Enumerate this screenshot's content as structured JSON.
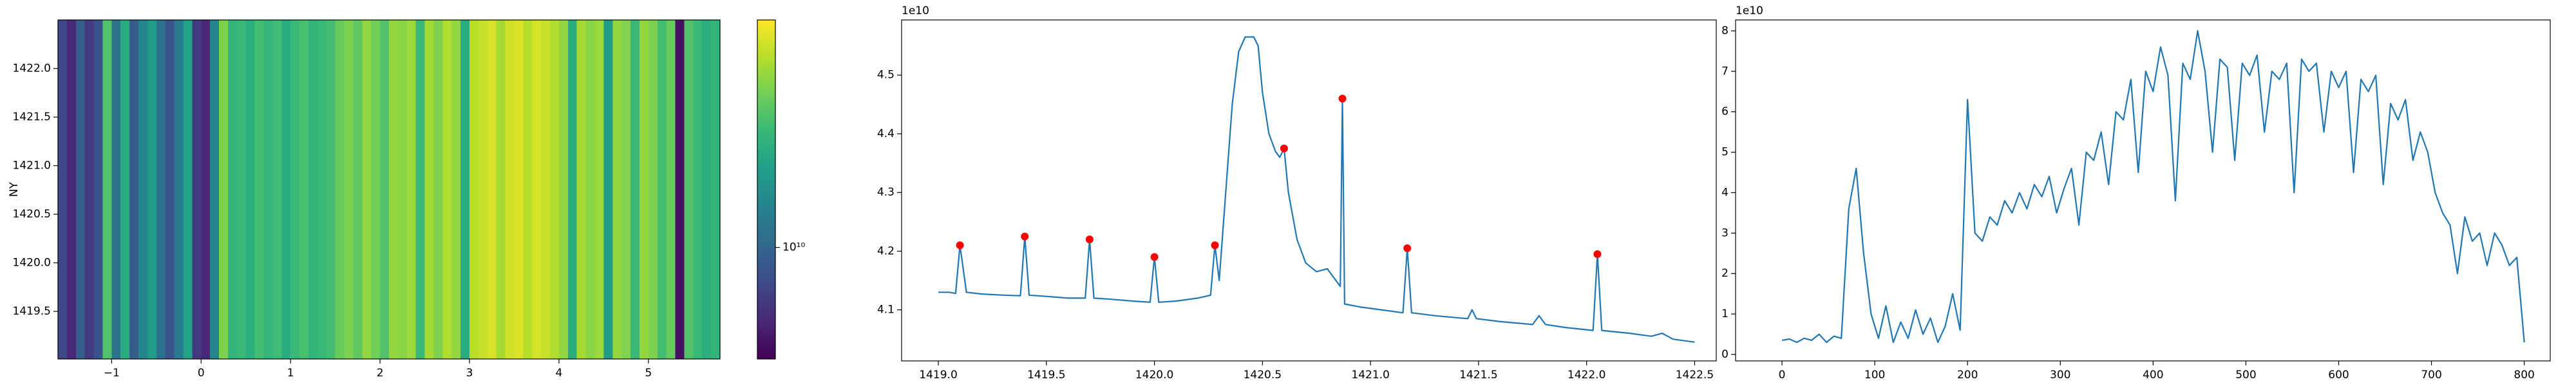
{
  "chart_data": [
    {
      "type": "heatmap",
      "ylabel": "NY",
      "x_edges": [
        -1.6,
        -1.5,
        -1.4,
        -1.3,
        -1.2,
        -1.1,
        -1.0,
        -0.9,
        -0.8,
        -0.7,
        -0.6,
        -0.5,
        -0.4,
        -0.3,
        -0.2,
        -0.1,
        0,
        0.1,
        0.2,
        0.3,
        0.4,
        0.5,
        0.6,
        0.7,
        0.8,
        0.9,
        1.0,
        1.1,
        1.2,
        1.3,
        1.4,
        1.5,
        1.6,
        1.7,
        1.8,
        1.9,
        2.0,
        2.1,
        2.2,
        2.3,
        2.4,
        2.5,
        2.6,
        2.7,
        2.8,
        2.9,
        3.0,
        3.1,
        3.2,
        3.3,
        3.4,
        3.5,
        3.6,
        3.7,
        3.8,
        3.9,
        4.0,
        4.1,
        4.2,
        4.3,
        4.4,
        4.5,
        4.6,
        4.7,
        4.8,
        4.9,
        5.0,
        5.1,
        5.2,
        5.3,
        5.4,
        5.5,
        5.6,
        5.7,
        5.8
      ],
      "values": [
        7000000000.0,
        5000000000.0,
        9000000000.0,
        6000000000.0,
        8000000000.0,
        35000000000.0,
        12000000000.0,
        25000000000.0,
        9000000000.0,
        15000000000.0,
        20000000000.0,
        11000000000.0,
        8000000000.0,
        13000000000.0,
        22000000000.0,
        6000000000.0,
        5000000000.0,
        15000000000.0,
        45000000000.0,
        28000000000.0,
        30000000000.0,
        26000000000.0,
        32000000000.0,
        29000000000.0,
        31000000000.0,
        25000000000.0,
        30000000000.0,
        33000000000.0,
        28000000000.0,
        30000000000.0,
        32000000000.0,
        40000000000.0,
        45000000000.0,
        38000000000.0,
        50000000000.0,
        42000000000.0,
        35000000000.0,
        50000000000.0,
        48000000000.0,
        52000000000.0,
        30000000000.0,
        55000000000.0,
        45000000000.0,
        58000000000.0,
        50000000000.0,
        25000000000.0,
        60000000000.0,
        65000000000.0,
        70000000000.0,
        55000000000.0,
        68000000000.0,
        72000000000.0,
        60000000000.0,
        70000000000.0,
        65000000000.0,
        58000000000.0,
        50000000000.0,
        25000000000.0,
        55000000000.0,
        48000000000.0,
        52000000000.0,
        20000000000.0,
        50000000000.0,
        46000000000.0,
        30000000000.0,
        50000000000.0,
        45000000000.0,
        32000000000.0,
        40000000000.0,
        4000000000.0,
        35000000000.0,
        30000000000.0,
        26000000000.0,
        28000000000.0
      ],
      "xlim": [
        -1.6,
        5.8
      ],
      "ylim": [
        1419.01,
        1422.5
      ],
      "xticks": [
        {
          "value": -1,
          "label": "−1"
        },
        0,
        1,
        2,
        3,
        4,
        5
      ],
      "yticks": [
        {
          "value": 1419.5,
          "label": "1419.5"
        },
        {
          "value": 1420.0,
          "label": "1420.0"
        },
        {
          "value": 1420.5,
          "label": "1420.5"
        },
        {
          "value": 1421.0,
          "label": "1421.0"
        },
        {
          "value": 1421.5,
          "label": "1421.5"
        },
        {
          "value": 1422.0,
          "label": "1422.0"
        }
      ],
      "colormap": [
        "#440154",
        "#482878",
        "#3e4989",
        "#31688e",
        "#26828e",
        "#1f9e89",
        "#35b779",
        "#6ece58",
        "#b5de2b",
        "#fde725"
      ],
      "clim": [
        3500000000.0,
        85000000000.0
      ],
      "colorbar_scale": "log",
      "colorbar_ticks": [
        {
          "value": 10000000000.0,
          "label": "10¹⁰"
        }
      ]
    },
    {
      "type": "line",
      "offset_label": "1e10",
      "color": "#1f77b4",
      "x": [
        1419.0,
        1419.05,
        1419.08,
        1419.1,
        1419.13,
        1419.2,
        1419.3,
        1419.38,
        1419.4,
        1419.42,
        1419.5,
        1419.6,
        1419.68,
        1419.7,
        1419.72,
        1419.8,
        1419.9,
        1419.98,
        1420.0,
        1420.02,
        1420.1,
        1420.2,
        1420.26,
        1420.28,
        1420.3,
        1420.33,
        1420.36,
        1420.39,
        1420.42,
        1420.46,
        1420.48,
        1420.5,
        1420.53,
        1420.56,
        1420.58,
        1420.6,
        1420.62,
        1420.66,
        1420.7,
        1420.75,
        1420.8,
        1420.84,
        1420.86,
        1420.87,
        1420.88,
        1420.95,
        1421.05,
        1421.15,
        1421.17,
        1421.19,
        1421.3,
        1421.45,
        1421.47,
        1421.49,
        1421.6,
        1421.75,
        1421.78,
        1421.81,
        1421.9,
        1422.03,
        1422.05,
        1422.07,
        1422.2,
        1422.3,
        1422.35,
        1422.4,
        1422.5
      ],
      "values": [
        4.13,
        4.13,
        4.128,
        4.21,
        4.13,
        4.127,
        4.125,
        4.124,
        4.225,
        4.125,
        4.123,
        4.12,
        4.12,
        4.22,
        4.12,
        4.118,
        4.115,
        4.113,
        4.19,
        4.113,
        4.115,
        4.12,
        4.125,
        4.21,
        4.15,
        4.3,
        4.45,
        4.54,
        4.565,
        4.565,
        4.55,
        4.47,
        4.4,
        4.37,
        4.36,
        4.375,
        4.3,
        4.22,
        4.18,
        4.165,
        4.17,
        4.15,
        4.14,
        4.46,
        4.11,
        4.105,
        4.1,
        4.095,
        4.205,
        4.095,
        4.09,
        4.085,
        4.1,
        4.085,
        4.08,
        4.075,
        4.09,
        4.075,
        4.07,
        4.065,
        4.195,
        4.065,
        4.06,
        4.055,
        4.06,
        4.05,
        4.045
      ],
      "peaks": {
        "color": "#ff0000",
        "x": [
          1419.1,
          1419.4,
          1419.7,
          1420.0,
          1420.28,
          1420.6,
          1420.87,
          1421.17,
          1422.05
        ],
        "values": [
          4.21,
          4.225,
          4.22,
          4.19,
          4.21,
          4.375,
          4.46,
          4.205,
          4.195
        ]
      },
      "xlim": [
        1418.83,
        1422.6
      ],
      "ylim": [
        4.013,
        4.594
      ],
      "xticks": [
        {
          "value": 1419.0,
          "label": "1419.0"
        },
        {
          "value": 1419.5,
          "label": "1419.5"
        },
        {
          "value": 1420.0,
          "label": "1420.0"
        },
        {
          "value": 1420.5,
          "label": "1420.5"
        },
        {
          "value": 1421.0,
          "label": "1421.0"
        },
        {
          "value": 1421.5,
          "label": "1421.5"
        },
        {
          "value": 1422.0,
          "label": "1422.0"
        },
        {
          "value": 1422.5,
          "label": "1422.5"
        }
      ],
      "yticks": [
        4.1,
        4.2,
        4.3,
        4.4,
        4.5
      ]
    },
    {
      "type": "line",
      "offset_label": "1e10",
      "color": "#1f77b4",
      "x": [
        0,
        8,
        16,
        24,
        32,
        40,
        48,
        56,
        64,
        72,
        80,
        88,
        96,
        104,
        112,
        120,
        128,
        136,
        144,
        152,
        160,
        168,
        176,
        184,
        192,
        200,
        208,
        216,
        224,
        232,
        240,
        248,
        256,
        264,
        272,
        280,
        288,
        296,
        304,
        312,
        320,
        328,
        336,
        344,
        352,
        360,
        368,
        376,
        384,
        392,
        400,
        408,
        416,
        424,
        432,
        440,
        448,
        456,
        464,
        472,
        480,
        488,
        496,
        504,
        512,
        520,
        528,
        536,
        544,
        552,
        560,
        568,
        576,
        584,
        592,
        600,
        608,
        616,
        624,
        632,
        640,
        648,
        656,
        664,
        672,
        680,
        688,
        696,
        704,
        712,
        720,
        728,
        736,
        744,
        752,
        760,
        768,
        776,
        784,
        792,
        800
      ],
      "values": [
        0.35,
        0.38,
        0.3,
        0.4,
        0.35,
        0.5,
        0.3,
        0.45,
        0.4,
        3.6,
        4.6,
        2.5,
        1.0,
        0.4,
        1.2,
        0.3,
        0.8,
        0.4,
        1.1,
        0.5,
        0.9,
        0.3,
        0.7,
        1.5,
        0.6,
        6.3,
        3.0,
        2.8,
        3.4,
        3.2,
        3.8,
        3.5,
        4.0,
        3.6,
        4.2,
        3.9,
        4.4,
        3.5,
        4.1,
        4.6,
        3.2,
        5.0,
        4.8,
        5.5,
        4.2,
        6.0,
        5.8,
        6.8,
        4.5,
        7.0,
        6.5,
        7.6,
        6.9,
        3.8,
        7.2,
        6.8,
        8.0,
        7.0,
        5.0,
        7.3,
        7.1,
        4.8,
        7.2,
        6.9,
        7.4,
        5.5,
        7.0,
        6.8,
        7.2,
        4.0,
        7.3,
        7.0,
        7.2,
        5.5,
        7.0,
        6.6,
        7.0,
        4.5,
        6.8,
        6.5,
        6.9,
        4.2,
        6.2,
        5.8,
        6.3,
        4.8,
        5.5,
        5.0,
        4.0,
        3.5,
        3.2,
        2.0,
        3.4,
        2.8,
        3.0,
        2.2,
        3.0,
        2.7,
        2.2,
        2.4,
        0.3
      ],
      "xlim": [
        -50,
        828
      ],
      "ylim": [
        -0.16,
        8.27
      ],
      "xticks": [
        0,
        100,
        200,
        300,
        400,
        500,
        600,
        700,
        800
      ],
      "yticks": [
        0,
        1,
        2,
        3,
        4,
        5,
        6,
        7,
        8
      ]
    }
  ]
}
